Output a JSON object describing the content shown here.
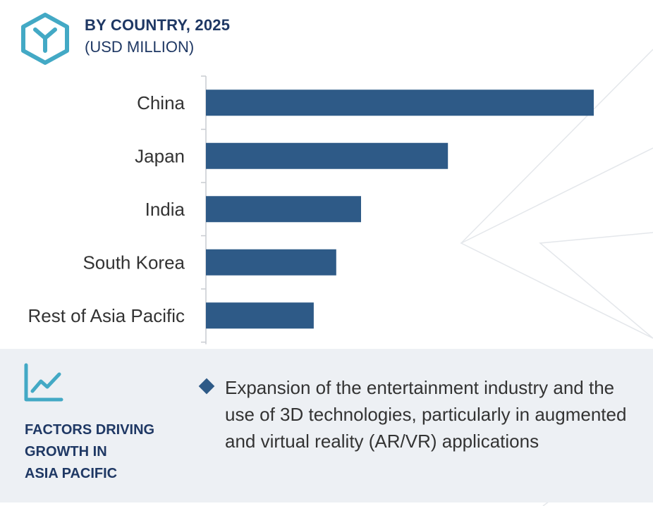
{
  "header": {
    "title": "BY COUNTRY, 2025",
    "subtitle": "(USD MILLION)"
  },
  "colors": {
    "bar": "#2e5a87",
    "heading": "#1f3864",
    "accent": "#43a9c5",
    "panel_bg": "#edf0f4"
  },
  "chart_data": {
    "type": "bar",
    "orientation": "horizontal",
    "categories": [
      "China",
      "Japan",
      "India",
      "South Korea",
      "Rest of Asia Pacific"
    ],
    "values": [
      100,
      62.4,
      40,
      33.6,
      27.8
    ],
    "title": "BY COUNTRY, 2025",
    "xlabel": "",
    "ylabel": "",
    "xlim": [
      0,
      100
    ],
    "grid": false,
    "legend": "none"
  },
  "factors": {
    "icon": "trend-line-icon",
    "heading_lines": [
      "FACTORS DRIVING",
      "GROWTH IN",
      "ASIA PACIFIC"
    ],
    "items": [
      "Expansion of the entertainment industry and the use of 3D technologies, particularly in augmented and virtual reality (AR/VR) applications"
    ]
  }
}
